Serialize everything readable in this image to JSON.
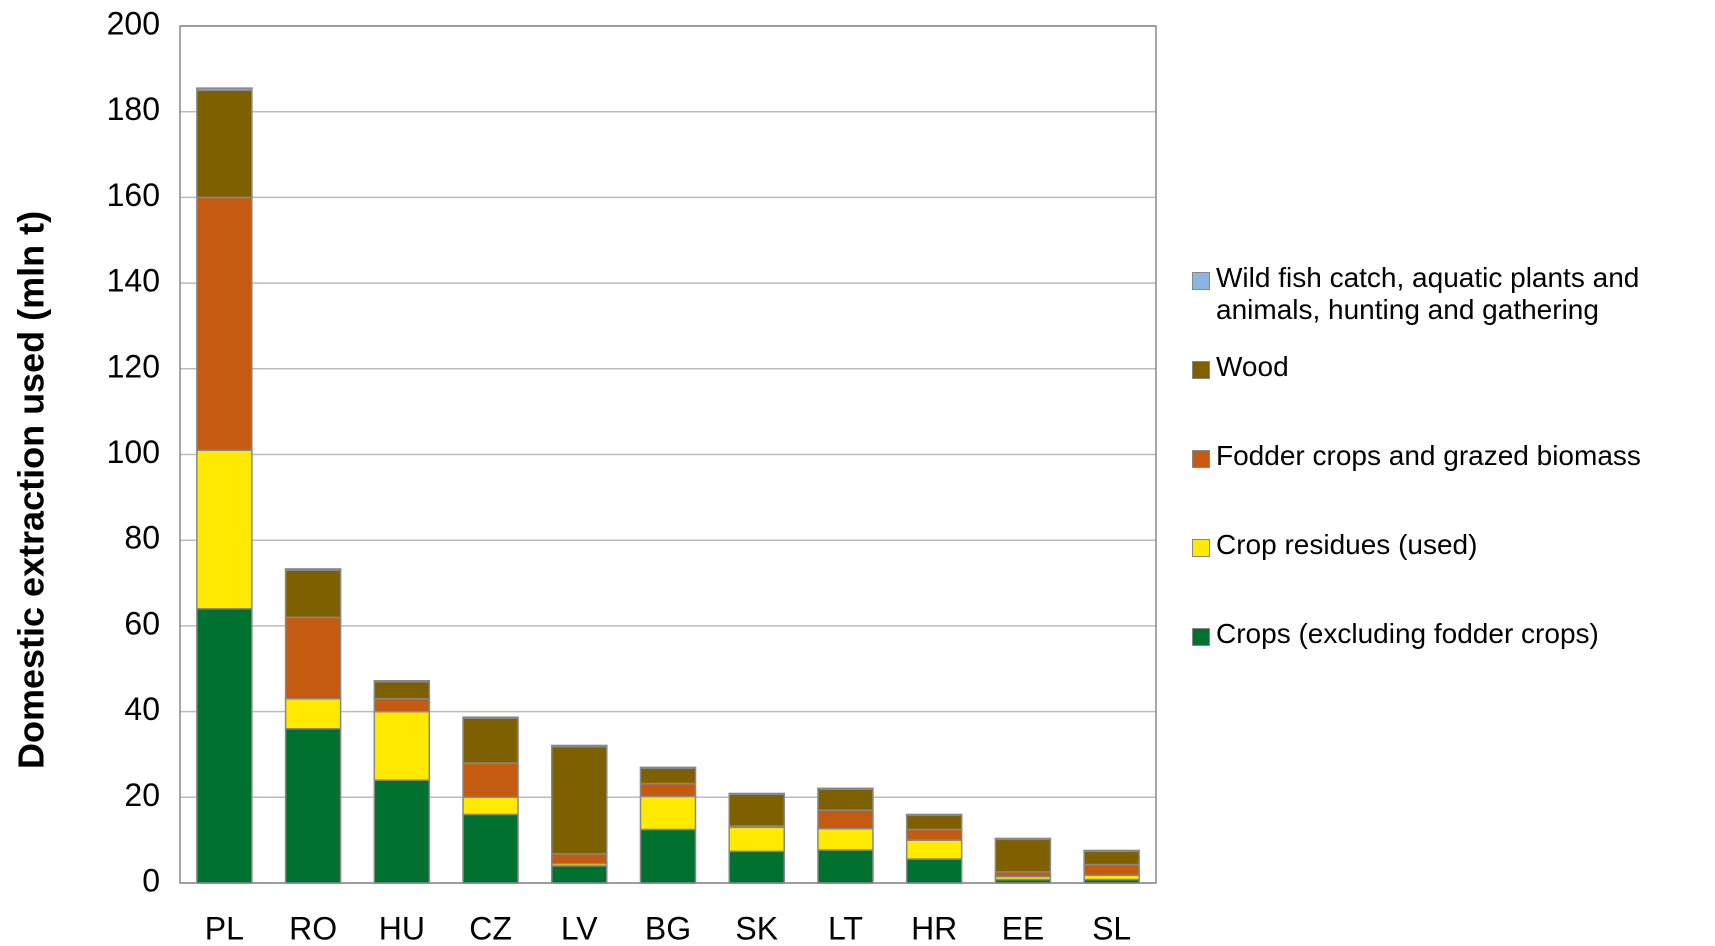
{
  "chart_data": {
    "type": "stacked_bar",
    "y_label": "Domestic extraction used (mln t)",
    "categories": [
      "PL",
      "RO",
      "HU",
      "CZ",
      "LV",
      "BG",
      "SK",
      "LT",
      "HR",
      "EE",
      "SL"
    ],
    "series": [
      {
        "name": "Crops (excluding fodder crops)",
        "color": "#00712f",
        "values": [
          64,
          36,
          24,
          16,
          4,
          12.5,
          7.4,
          7.7,
          5.6,
          0.8,
          0.8
        ]
      },
      {
        "name": "Crop residues (used)",
        "color": "#ffea00",
        "values": [
          37,
          7,
          16,
          4,
          0.5,
          7.7,
          5.6,
          5,
          4.4,
          0.7,
          1
        ]
      },
      {
        "name": "Fodder crops and grazed biomass",
        "color": "#c55a11",
        "values": [
          59,
          19,
          3,
          8,
          2.3,
          3,
          0.3,
          4.3,
          2.5,
          1.1,
          2.5
        ]
      },
      {
        "name": "Wood",
        "color": "#7f6000",
        "values": [
          25,
          11,
          4,
          10.5,
          25,
          3.6,
          7.4,
          4.9,
          3.3,
          7.6,
          3.1
        ]
      },
      {
        "name": "Wild fish catch, aquatic plants and animals, hunting and gathering",
        "color": "#8db4e2",
        "values": [
          0.5,
          0.3,
          0.2,
          0.2,
          0.3,
          0.2,
          0.2,
          0.2,
          0.2,
          0.2,
          0.2
        ]
      }
    ],
    "ylim": [
      0,
      200
    ],
    "yticks": [
      0,
      20,
      40,
      60,
      80,
      100,
      120,
      140,
      160,
      180,
      200
    ],
    "grid": true
  }
}
